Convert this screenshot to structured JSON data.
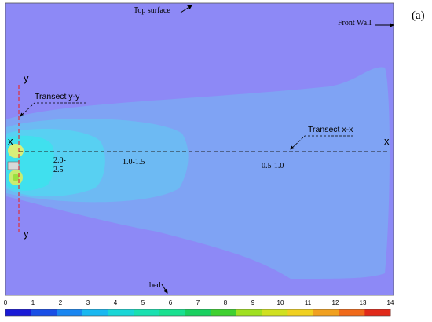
{
  "panel_label": "(a)",
  "annotations": {
    "top_surface": "Top surface",
    "front_wall": "Front Wall",
    "bed": "bed",
    "transect_yy": "Transect y-y",
    "transect_xx": "Transect x-x"
  },
  "axis_markers": {
    "y_top": "y",
    "y_bottom": "y",
    "x_left": "x",
    "x_right": "x"
  },
  "contour_labels": {
    "zone_high": "2.0-\n2.5",
    "zone_mid": "1.0-1.5",
    "zone_low": "0.5-1.0"
  },
  "colorbar": {
    "ticks": [
      "0",
      "1",
      "2",
      "3",
      "4",
      "5",
      "6",
      "7",
      "8",
      "9",
      "10",
      "11",
      "12",
      "13",
      "14"
    ],
    "colors": [
      "#1a1ad6",
      "#1a4fe6",
      "#1a86f0",
      "#1ab8f0",
      "#1ad6d6",
      "#1ae0b0",
      "#1ae090",
      "#1ad060",
      "#40d030",
      "#a0e020",
      "#d0e020",
      "#f0d020",
      "#f0a020",
      "#f06a1a",
      "#e02a1a"
    ]
  },
  "colors": {
    "background": "#8d89f6",
    "plume_outer": "#7fa6f4",
    "plume_mid": "#69bdf3",
    "plume_inner": "#53d3f2",
    "plume_core": "#3fe0ee"
  }
}
